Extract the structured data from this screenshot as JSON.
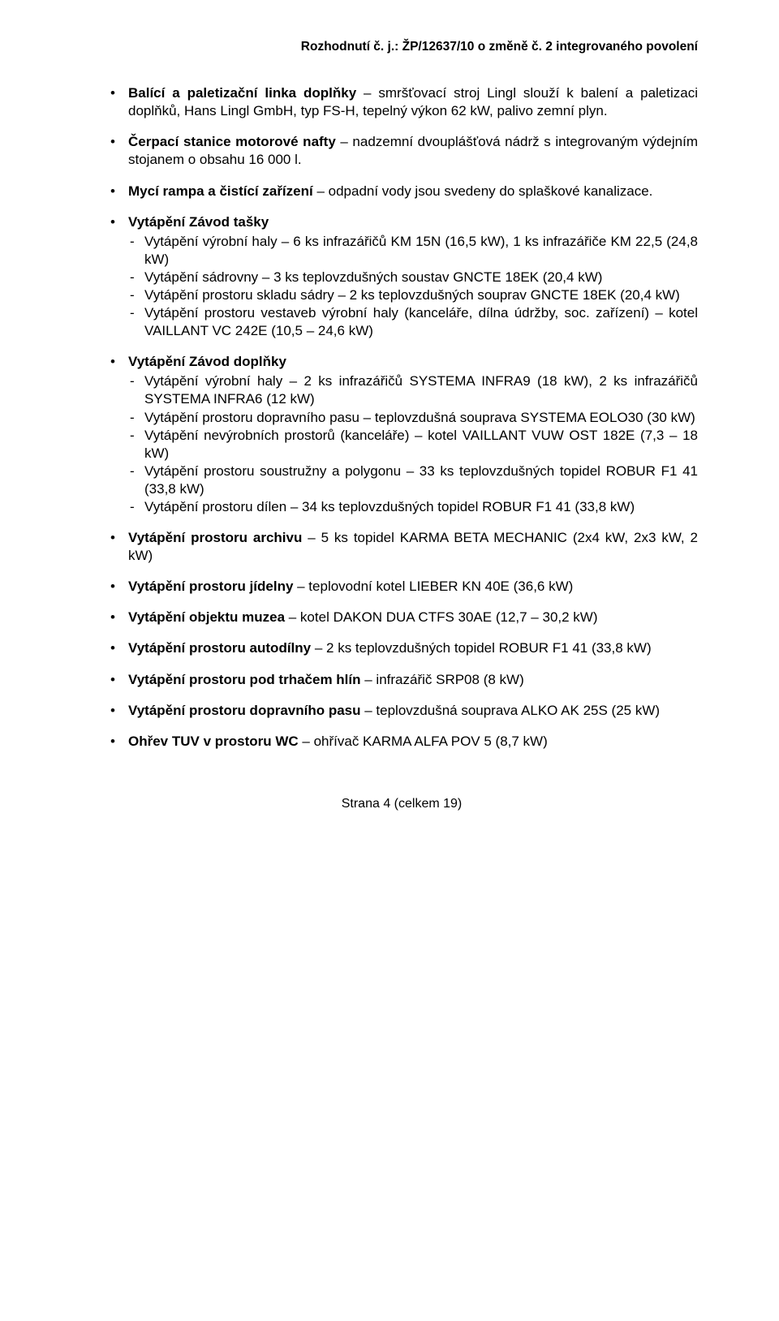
{
  "header": "Rozhodnutí č. j.: ŽP/12637/10 o změně č. 2 integrovaného povolení",
  "items": [
    {
      "prefix_bold": "Balící a paletizační linka doplňky",
      "rest": " – smršťovací stroj Lingl slouží k balení a paletizaci doplňků, Hans Lingl GmbH, typ FS-H, tepelný výkon 62 kW, palivo zemní plyn."
    },
    {
      "prefix_bold": "Čerpací stanice motorové nafty",
      "rest": " – nadzemní dvouplášťová nádrž s integrovaným výdejním stojanem o obsahu 16 000 l."
    },
    {
      "prefix_bold": "Mycí rampa a čistící zařízení",
      "rest": " – odpadní vody jsou svedeny do splaškové kanalizace."
    },
    {
      "prefix_bold": "Vytápění Závod tašky",
      "rest": "",
      "sub": [
        "Vytápění výrobní haly – 6 ks infrazářičů KM 15N (16,5 kW), 1 ks infrazářiče KM 22,5 (24,8 kW)",
        "Vytápění sádrovny – 3 ks teplovzdušných soustav GNCTE 18EK (20,4 kW)",
        "Vytápění prostoru skladu sádry – 2 ks teplovzdušných souprav GNCTE 18EK (20,4 kW)",
        "Vytápění prostoru vestaveb výrobní haly (kanceláře, dílna údržby, soc. zařízení) – kotel VAILLANT VC 242E (10,5 – 24,6 kW)"
      ]
    },
    {
      "prefix_bold": "Vytápění Závod doplňky",
      "rest": "",
      "sub": [
        "Vytápění výrobní haly – 2 ks infrazářičů SYSTEMA INFRA9 (18 kW), 2 ks infrazářičů SYSTEMA INFRA6 (12 kW)",
        "Vytápění prostoru dopravního pasu – teplovzdušná souprava SYSTEMA EOLO30 (30 kW)",
        "Vytápění nevýrobních prostorů (kanceláře) – kotel VAILLANT VUW OST 182E (7,3 – 18 kW)",
        "Vytápění prostoru soustružny a polygonu – 33 ks teplovzdušných topidel ROBUR F1 41 (33,8 kW)",
        "Vytápění prostoru dílen – 34 ks teplovzdušných topidel ROBUR F1 41 (33,8 kW)"
      ]
    },
    {
      "prefix_bold": "Vytápění prostoru archivu",
      "rest": " – 5 ks topidel KARMA BETA MECHANIC (2x4 kW, 2x3 kW, 2 kW)"
    },
    {
      "prefix_bold": "Vytápění prostoru jídelny",
      "rest": " – teplovodní kotel LIEBER KN 40E (36,6 kW)"
    },
    {
      "prefix_bold": "Vytápění objektu muzea",
      "rest": " – kotel DAKON DUA CTFS 30AE (12,7 – 30,2 kW)"
    },
    {
      "prefix_bold": "Vytápění prostoru autodílny",
      "rest": " – 2 ks teplovzdušných topidel ROBUR F1 41 (33,8 kW)"
    },
    {
      "prefix_bold": "Vytápění prostoru pod trhačem hlín",
      "rest": " – infrazářič SRP08 (8 kW)"
    },
    {
      "prefix_bold": "Vytápění prostoru dopravního pasu",
      "rest": " – teplovzdušná souprava ALKO AK 25S (25 kW)"
    },
    {
      "prefix_bold": "Ohřev TUV v prostoru WC",
      "rest": " – ohřívač KARMA ALFA POV 5 (8,7 kW)"
    }
  ],
  "footer": "Strana 4 (celkem 19)"
}
